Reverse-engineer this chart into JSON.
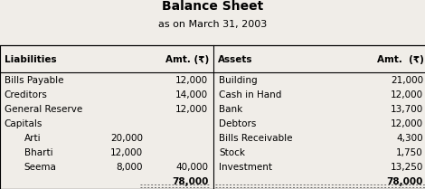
{
  "title": "Balance Sheet",
  "subtitle": "as on March 31, 2003",
  "headers": [
    "Liabilities",
    "Amt. (₹)",
    "Assets",
    "Amt.  (₹)"
  ],
  "liabilities": [
    {
      "name": "Bills Payable",
      "sub_amt": "",
      "total": "12,000"
    },
    {
      "name": "Creditors",
      "sub_amt": "",
      "total": "14,000"
    },
    {
      "name": "General Reserve",
      "sub_amt": "",
      "total": "12,000"
    },
    {
      "name": "Capitals",
      "sub_amt": "",
      "total": ""
    },
    {
      "name": "  Arti",
      "sub_amt": "20,000",
      "total": ""
    },
    {
      "name": "  Bharti",
      "sub_amt": "12,000",
      "total": ""
    },
    {
      "name": "  Seema",
      "sub_amt": "8,000",
      "total": "40,000"
    },
    {
      "name": "",
      "sub_amt": "",
      "total": "78,000"
    }
  ],
  "assets": [
    {
      "name": "Building",
      "total": "21,000"
    },
    {
      "name": "Cash in Hand",
      "total": "12,000"
    },
    {
      "name": "Bank",
      "total": "13,700"
    },
    {
      "name": "Debtors",
      "total": "12,000"
    },
    {
      "name": "Bills Receivable",
      "total": "4,300"
    },
    {
      "name": "Stock",
      "total": "1,750"
    },
    {
      "name": "Investment",
      "total": "13,250"
    },
    {
      "name": "",
      "total": "78,000"
    }
  ],
  "bg_color": "#f0ede8",
  "font_size": 7.5,
  "title_font_size": 10
}
